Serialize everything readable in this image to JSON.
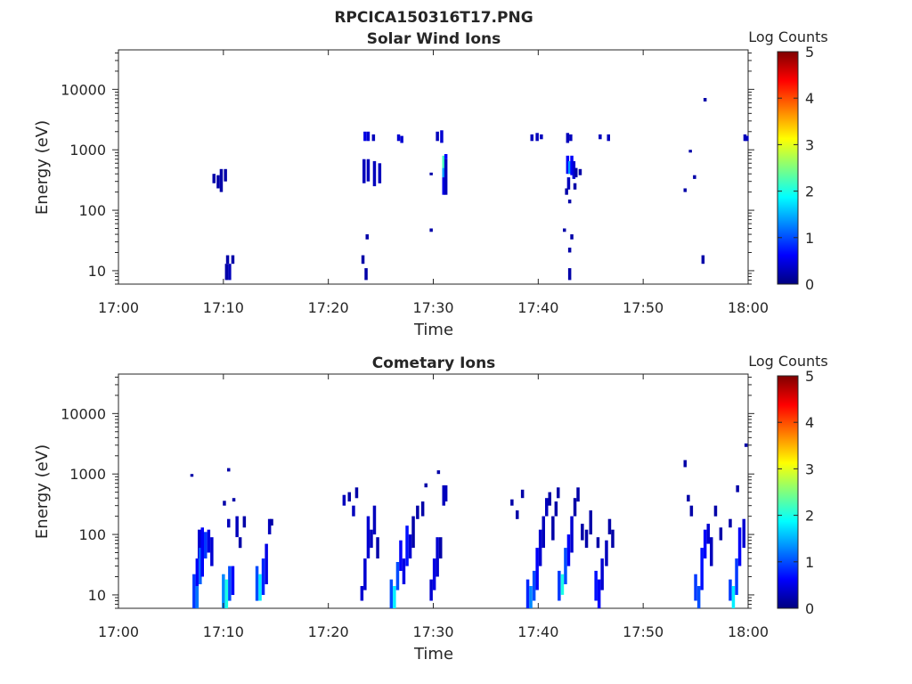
{
  "figure": {
    "filename": "RPCICA150316T17.PNG"
  },
  "colors": {
    "colormap": [
      "#00007f",
      "#0000ff",
      "#007fff",
      "#00ffff",
      "#7fff7f",
      "#ffff00",
      "#ff7f00",
      "#ff0000",
      "#7f0000"
    ]
  },
  "chart_data": [
    {
      "type": "heatmap",
      "title": "Solar Wind Ions",
      "xlabel": "Time",
      "ylabel": "Energy (eV)",
      "x_range_minutes": [
        0,
        60
      ],
      "x_ticks": [
        "17:00",
        "17:10",
        "17:20",
        "17:30",
        "17:40",
        "17:50",
        "18:00"
      ],
      "y_scale": "log",
      "y_range": [
        6,
        45000
      ],
      "y_ticks": [
        {
          "v": 10,
          "label": "10"
        },
        {
          "v": 100,
          "label": "100"
        },
        {
          "v": 1000,
          "label": "1000"
        },
        {
          "v": 10000,
          "label": "10000"
        }
      ],
      "colorbar": {
        "label": "Log Counts",
        "range": [
          0,
          5
        ],
        "ticks": [
          "0",
          "1",
          "2",
          "3",
          "4",
          "5"
        ]
      },
      "cells_format": "[minute, energy_low_eV, energy_high_eV, log_counts]",
      "cells": [
        [
          9.1,
          280,
          400,
          0.2
        ],
        [
          9.5,
          230,
          380,
          0.2
        ],
        [
          9.8,
          200,
          480,
          0.2
        ],
        [
          10.2,
          300,
          480,
          0.2
        ],
        [
          10.3,
          7,
          13,
          0.2
        ],
        [
          10.6,
          7,
          13,
          0.3
        ],
        [
          10.4,
          13,
          18,
          0.2
        ],
        [
          10.9,
          13,
          18,
          0.2
        ],
        [
          23.5,
          1400,
          2000,
          0.5
        ],
        [
          23.8,
          1400,
          2000,
          0.4
        ],
        [
          24.3,
          1400,
          1800,
          0.3
        ],
        [
          23.4,
          280,
          700,
          0.3
        ],
        [
          23.8,
          300,
          700,
          0.3
        ],
        [
          24.4,
          250,
          650,
          0.3
        ],
        [
          24.9,
          280,
          600,
          0.3
        ],
        [
          23.3,
          13,
          18,
          0.2
        ],
        [
          23.6,
          7,
          11,
          0.2
        ],
        [
          23.7,
          33,
          40,
          0.2
        ],
        [
          26.7,
          1400,
          1800,
          0.4
        ],
        [
          27.0,
          1300,
          1700,
          0.4
        ],
        [
          29.8,
          380,
          420,
          0.2
        ],
        [
          29.8,
          44,
          50,
          0.2
        ],
        [
          30.4,
          1400,
          2000,
          0.3
        ],
        [
          30.8,
          1300,
          2100,
          0.4
        ],
        [
          31.0,
          500,
          800,
          2.2
        ],
        [
          31.0,
          350,
          500,
          1.4
        ],
        [
          31.0,
          180,
          350,
          0.5
        ],
        [
          31.2,
          180,
          700,
          0.3
        ],
        [
          31.2,
          700,
          850,
          0.6
        ],
        [
          39.4,
          1400,
          1800,
          0.3
        ],
        [
          39.9,
          1400,
          1900,
          0.3
        ],
        [
          40.3,
          1500,
          1800,
          0.3
        ],
        [
          42.8,
          1300,
          1900,
          0.3
        ],
        [
          43.1,
          1400,
          1800,
          0.3
        ],
        [
          42.8,
          400,
          800,
          0.6
        ],
        [
          43.0,
          400,
          650,
          1.4
        ],
        [
          43.2,
          380,
          800,
          0.6
        ],
        [
          43.4,
          330,
          650,
          0.4
        ],
        [
          42.9,
          220,
          350,
          0.3
        ],
        [
          42.7,
          180,
          230,
          0.2
        ],
        [
          43.6,
          350,
          500,
          0.2
        ],
        [
          44.0,
          380,
          480,
          0.2
        ],
        [
          43.5,
          220,
          280,
          0.2
        ],
        [
          43.0,
          130,
          150,
          0.2
        ],
        [
          42.5,
          44,
          50,
          0.2
        ],
        [
          43.2,
          33,
          40,
          0.2
        ],
        [
          43.0,
          20,
          24,
          0.2
        ],
        [
          43.0,
          7,
          11,
          0.2
        ],
        [
          45.9,
          1500,
          1800,
          0.3
        ],
        [
          46.7,
          1400,
          1800,
          0.3
        ],
        [
          54.0,
          200,
          230,
          0.2
        ],
        [
          54.5,
          900,
          1000,
          0.2
        ],
        [
          54.9,
          330,
          380,
          0.2
        ],
        [
          55.7,
          13,
          18,
          0.2
        ],
        [
          55.9,
          6300,
          7200,
          0.2
        ],
        [
          59.7,
          1400,
          1800,
          0.3
        ],
        [
          59.9,
          1400,
          1700,
          0.3
        ]
      ]
    },
    {
      "type": "heatmap",
      "title": "Cometary Ions",
      "xlabel": "Time",
      "ylabel": "Energy (eV)",
      "x_range_minutes": [
        0,
        60
      ],
      "x_ticks": [
        "17:00",
        "17:10",
        "17:20",
        "17:30",
        "17:40",
        "17:50",
        "18:00"
      ],
      "y_scale": "log",
      "y_range": [
        6,
        45000
      ],
      "y_ticks": [
        {
          "v": 10,
          "label": "10"
        },
        {
          "v": 100,
          "label": "100"
        },
        {
          "v": 1000,
          "label": "1000"
        },
        {
          "v": 10000,
          "label": "10000"
        }
      ],
      "colorbar": {
        "label": "Log Counts",
        "range": [
          0,
          5
        ],
        "ticks": [
          "0",
          "1",
          "2",
          "3",
          "4",
          "5"
        ]
      },
      "cells_format": "[minute, energy_low_eV, energy_high_eV, log_counts]",
      "cells": [
        [
          7.2,
          6,
          22,
          0.9
        ],
        [
          7.5,
          6,
          14,
          1.2
        ],
        [
          7.5,
          14,
          40,
          0.6
        ],
        [
          7.7,
          40,
          120,
          0.4
        ],
        [
          7.8,
          15,
          60,
          1.1
        ],
        [
          8.0,
          20,
          130,
          0.6
        ],
        [
          8.3,
          40,
          110,
          0.9
        ],
        [
          8.6,
          50,
          120,
          0.5
        ],
        [
          8.9,
          30,
          90,
          0.4
        ],
        [
          7.0,
          900,
          1000,
          0.2
        ],
        [
          10.0,
          6,
          22,
          1.3
        ],
        [
          10.3,
          6,
          18,
          2.0
        ],
        [
          10.6,
          8,
          30,
          1.0
        ],
        [
          10.9,
          10,
          30,
          0.6
        ],
        [
          10.5,
          130,
          180,
          0.3
        ],
        [
          10.1,
          300,
          360,
          0.2
        ],
        [
          10.5,
          1100,
          1250,
          0.2
        ],
        [
          11.0,
          350,
          400,
          0.2
        ],
        [
          11.3,
          90,
          200,
          0.3
        ],
        [
          11.6,
          60,
          90,
          0.2
        ],
        [
          12.0,
          130,
          200,
          0.2
        ],
        [
          13.2,
          8,
          30,
          1.0
        ],
        [
          13.5,
          8,
          22,
          1.8
        ],
        [
          13.8,
          10,
          40,
          0.8
        ],
        [
          14.1,
          15,
          70,
          0.5
        ],
        [
          14.4,
          100,
          180,
          0.3
        ],
        [
          14.6,
          140,
          180,
          0.2
        ],
        [
          21.5,
          300,
          450,
          0.3
        ],
        [
          22.0,
          350,
          500,
          0.2
        ],
        [
          22.4,
          200,
          300,
          0.3
        ],
        [
          22.7,
          400,
          600,
          0.2
        ],
        [
          23.2,
          8,
          14,
          0.4
        ],
        [
          23.5,
          12,
          40,
          0.4
        ],
        [
          23.8,
          40,
          200,
          0.4
        ],
        [
          24.1,
          60,
          120,
          0.3
        ],
        [
          24.4,
          100,
          300,
          0.3
        ],
        [
          24.7,
          40,
          90,
          0.2
        ],
        [
          26.0,
          6,
          18,
          1.0
        ],
        [
          26.3,
          6,
          14,
          1.8
        ],
        [
          26.6,
          12,
          35,
          1.0
        ],
        [
          26.9,
          25,
          80,
          0.6
        ],
        [
          27.2,
          15,
          40,
          0.5
        ],
        [
          27.5,
          30,
          140,
          0.7
        ],
        [
          27.8,
          40,
          100,
          0.4
        ],
        [
          28.1,
          60,
          200,
          0.2
        ],
        [
          28.5,
          180,
          300,
          0.2
        ],
        [
          29.0,
          200,
          350,
          0.2
        ],
        [
          29.8,
          8,
          18,
          0.4
        ],
        [
          30.1,
          12,
          40,
          0.5
        ],
        [
          30.4,
          20,
          90,
          0.4
        ],
        [
          30.7,
          40,
          90,
          0.2
        ],
        [
          31.0,
          300,
          650,
          0.3
        ],
        [
          31.2,
          350,
          650,
          0.3
        ],
        [
          29.3,
          600,
          700,
          0.2
        ],
        [
          30.5,
          1000,
          1150,
          0.2
        ],
        [
          37.5,
          300,
          380,
          0.2
        ],
        [
          38.0,
          180,
          250,
          0.2
        ],
        [
          38.5,
          400,
          550,
          0.2
        ],
        [
          39.0,
          6,
          18,
          0.8
        ],
        [
          39.3,
          6,
          14,
          1.3
        ],
        [
          39.6,
          8,
          25,
          1.0
        ],
        [
          39.9,
          12,
          60,
          0.6
        ],
        [
          40.2,
          30,
          120,
          0.4
        ],
        [
          40.5,
          60,
          200,
          0.3
        ],
        [
          40.8,
          200,
          400,
          0.3
        ],
        [
          41.1,
          300,
          500,
          0.2
        ],
        [
          41.4,
          80,
          200,
          0.2
        ],
        [
          41.7,
          200,
          350,
          0.2
        ],
        [
          41.9,
          400,
          600,
          0.2
        ],
        [
          42.0,
          8,
          25,
          0.9
        ],
        [
          42.3,
          10,
          22,
          2.0
        ],
        [
          42.6,
          15,
          60,
          1.0
        ],
        [
          42.9,
          30,
          100,
          0.6
        ],
        [
          43.2,
          50,
          200,
          0.4
        ],
        [
          43.5,
          200,
          400,
          0.2
        ],
        [
          43.8,
          350,
          600,
          0.2
        ],
        [
          44.2,
          80,
          150,
          0.2
        ],
        [
          44.6,
          60,
          120,
          0.2
        ],
        [
          45.0,
          100,
          250,
          0.2
        ],
        [
          45.7,
          60,
          90,
          0.2
        ],
        [
          45.5,
          8,
          25,
          0.7
        ],
        [
          45.8,
          6,
          18,
          0.6
        ],
        [
          46.1,
          12,
          40,
          0.4
        ],
        [
          46.5,
          30,
          80,
          0.3
        ],
        [
          46.8,
          100,
          180,
          0.2
        ],
        [
          47.1,
          60,
          120,
          0.2
        ],
        [
          54.0,
          1300,
          1700,
          0.2
        ],
        [
          54.3,
          350,
          450,
          0.2
        ],
        [
          54.6,
          200,
          300,
          0.2
        ],
        [
          55.0,
          8,
          22,
          0.9
        ],
        [
          55.3,
          6,
          14,
          1.0
        ],
        [
          55.6,
          12,
          60,
          0.7
        ],
        [
          55.9,
          40,
          120,
          0.6
        ],
        [
          56.2,
          70,
          150,
          0.4
        ],
        [
          56.5,
          30,
          90,
          0.3
        ],
        [
          56.9,
          200,
          300,
          0.2
        ],
        [
          57.4,
          80,
          130,
          0.2
        ],
        [
          58.3,
          8,
          18,
          0.9
        ],
        [
          58.6,
          6,
          14,
          1.8
        ],
        [
          58.9,
          10,
          40,
          0.9
        ],
        [
          59.2,
          30,
          130,
          0.6
        ],
        [
          59.6,
          60,
          180,
          0.4
        ],
        [
          59.0,
          500,
          650,
          0.2
        ],
        [
          59.8,
          2800,
          3200,
          0.2
        ],
        [
          58.3,
          130,
          180,
          0.2
        ]
      ]
    }
  ]
}
